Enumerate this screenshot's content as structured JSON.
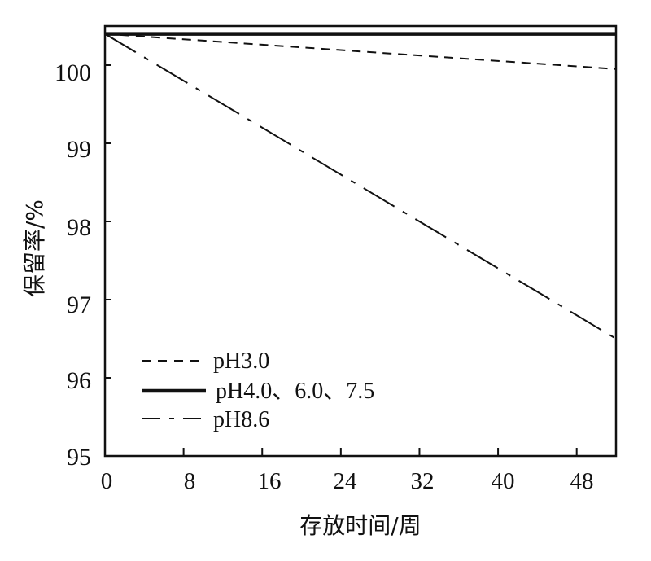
{
  "chart_data": {
    "type": "line",
    "title": "",
    "xlabel": "存放时间/周",
    "ylabel": "保留率/%",
    "xlim": [
      0,
      52
    ],
    "ylim": [
      95,
      100.5
    ],
    "x_ticks": [
      0,
      8,
      16,
      24,
      32,
      40,
      48
    ],
    "y_ticks": [
      95,
      96,
      97,
      98,
      99,
      100
    ],
    "grid": false,
    "legend_position": "lower-left",
    "series": [
      {
        "name": "pH3.0",
        "style": "dashed",
        "x": [
          0,
          52
        ],
        "values": [
          100.4,
          99.95
        ]
      },
      {
        "name": "pH4.0、6.0、7.5",
        "style": "solid-thick",
        "x": [
          0,
          52
        ],
        "values": [
          100.4,
          100.4
        ]
      },
      {
        "name": "pH8.6",
        "style": "dash-dot",
        "x": [
          0,
          52
        ],
        "values": [
          100.4,
          96.5
        ]
      }
    ]
  },
  "axes": {
    "x_title": "存放时间/周",
    "y_title": "保留率/%",
    "x_tick_labels": [
      "0",
      "8",
      "16",
      "24",
      "32",
      "40",
      "48"
    ],
    "y_tick_labels": [
      "100",
      "99",
      "98",
      "97",
      "96",
      "95"
    ]
  },
  "legend": {
    "items": [
      {
        "label": "pH3.0",
        "style": "dashed"
      },
      {
        "label": "pH4.0、6.0、7.5",
        "style": "solid-thick"
      },
      {
        "label": "pH8.6",
        "style": "dash-dot"
      }
    ]
  },
  "colors": {
    "line": "#111111",
    "background": "#ffffff"
  }
}
